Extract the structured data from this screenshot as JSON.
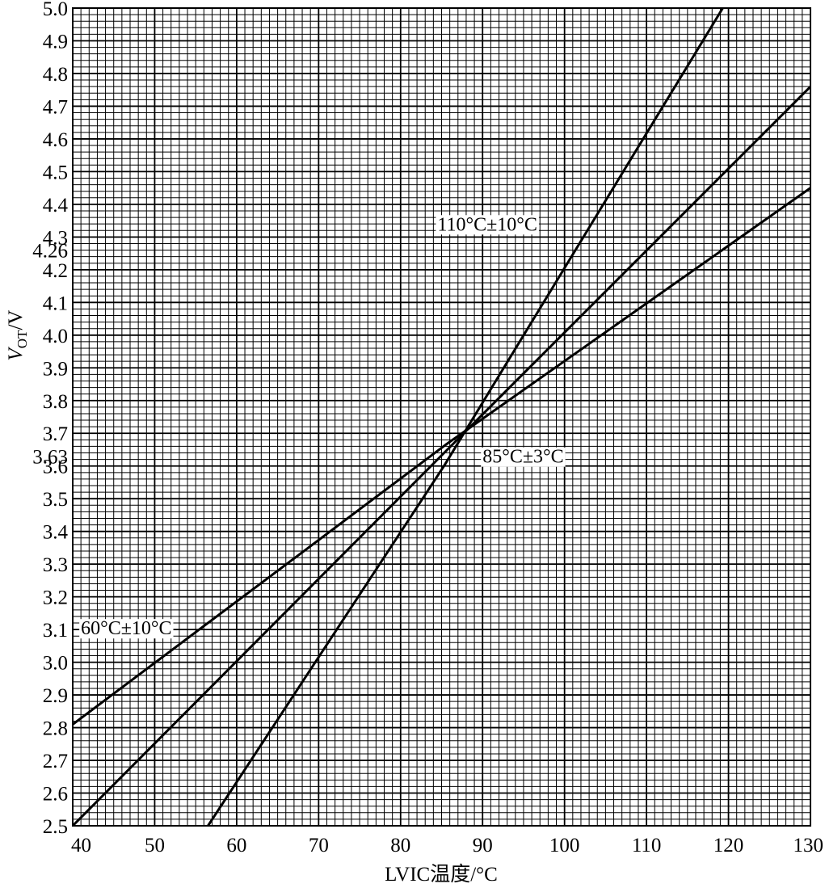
{
  "chart_data": {
    "type": "line",
    "xlabel": "LVIC温度/°C",
    "ylabel": "V_OT/V",
    "ylabel_main": "V",
    "ylabel_sub": "OT",
    "ylabel_unit": "/V",
    "xlim": [
      40,
      130
    ],
    "ylim": [
      2.5,
      5.0
    ],
    "x_ticks": [
      "40",
      "50",
      "60",
      "70",
      "80",
      "90",
      "100",
      "110",
      "120",
      "130"
    ],
    "y_ticks": [
      "2.5",
      "2.6",
      "2.7",
      "2.8",
      "2.9",
      "3.0",
      "3.1",
      "3.2",
      "3.3",
      "3.4",
      "3.5",
      "3.6",
      "3.63",
      "3.7",
      "3.8",
      "3.9",
      "4.0",
      "4.1",
      "4.2",
      "4.26",
      "4.3",
      "4.4",
      "4.5",
      "4.6",
      "4.7",
      "4.8",
      "4.9",
      "5.0"
    ],
    "grid": true,
    "series": [
      {
        "label_text": "60°C±10°C",
        "x": [
          40,
          85.5,
          130
        ],
        "y": [
          2.81,
          3.665,
          4.45
        ]
      },
      {
        "label_text": "85°C±3°C",
        "x": [
          40,
          85.5,
          130
        ],
        "y": [
          2.5,
          3.645,
          4.76
        ]
      },
      {
        "label_text": "110°C±10°C",
        "x": [
          56.5,
          85.3,
          119.3
        ],
        "y": [
          2.5,
          3.6,
          5.0
        ]
      }
    ],
    "label_anchors": [
      {
        "x": 41,
        "y": 3.085
      },
      {
        "x": 90,
        "y": 3.61
      },
      {
        "x": 84.5,
        "y": 4.32
      }
    ]
  }
}
